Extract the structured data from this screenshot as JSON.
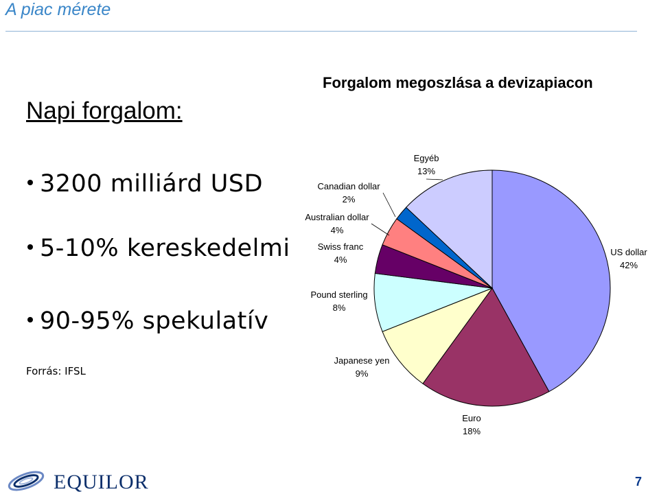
{
  "slide": {
    "title": "A piac mérete",
    "left_heading": "Napi forgalom:",
    "bullets": [
      "3200 milliárd USD",
      "5-10% kereskedelmi",
      "90-95% spekulatív"
    ],
    "source": "Forrás: IFSL",
    "logo_text": "EQUILOR",
    "page_number": "7"
  },
  "chart_data": {
    "type": "pie",
    "title": "Forgalom megoszlása a devizapiacon",
    "slices": [
      {
        "name": "US dollar",
        "value": 42,
        "pct_label": "42%",
        "color": "#9999ff"
      },
      {
        "name": "Euro",
        "value": 18,
        "pct_label": "18%",
        "color": "#993366"
      },
      {
        "name": "Japanese yen",
        "value": 9,
        "pct_label": "9%",
        "color": "#ffffcc"
      },
      {
        "name": "Pound sterling",
        "value": 8,
        "pct_label": "8%",
        "color": "#ccffff"
      },
      {
        "name": "Swiss franc",
        "value": 4,
        "pct_label": "4%",
        "color": "#660066"
      },
      {
        "name": "Australian dollar",
        "value": 4,
        "pct_label": "4%",
        "color": "#ff8080"
      },
      {
        "name": "Canadian dollar",
        "value": 2,
        "pct_label": "2%",
        "color": "#0066cc"
      },
      {
        "name": "Egyéb",
        "value": 13,
        "pct_label": "13%",
        "color": "#ccccff"
      }
    ],
    "start_angle_deg": 0,
    "direction": "clockwise"
  },
  "colors": {
    "title": "#3a86c8",
    "rule": "#8fb3d6",
    "logo": "#0c2f6b",
    "page_number": "#0b3a8c"
  }
}
